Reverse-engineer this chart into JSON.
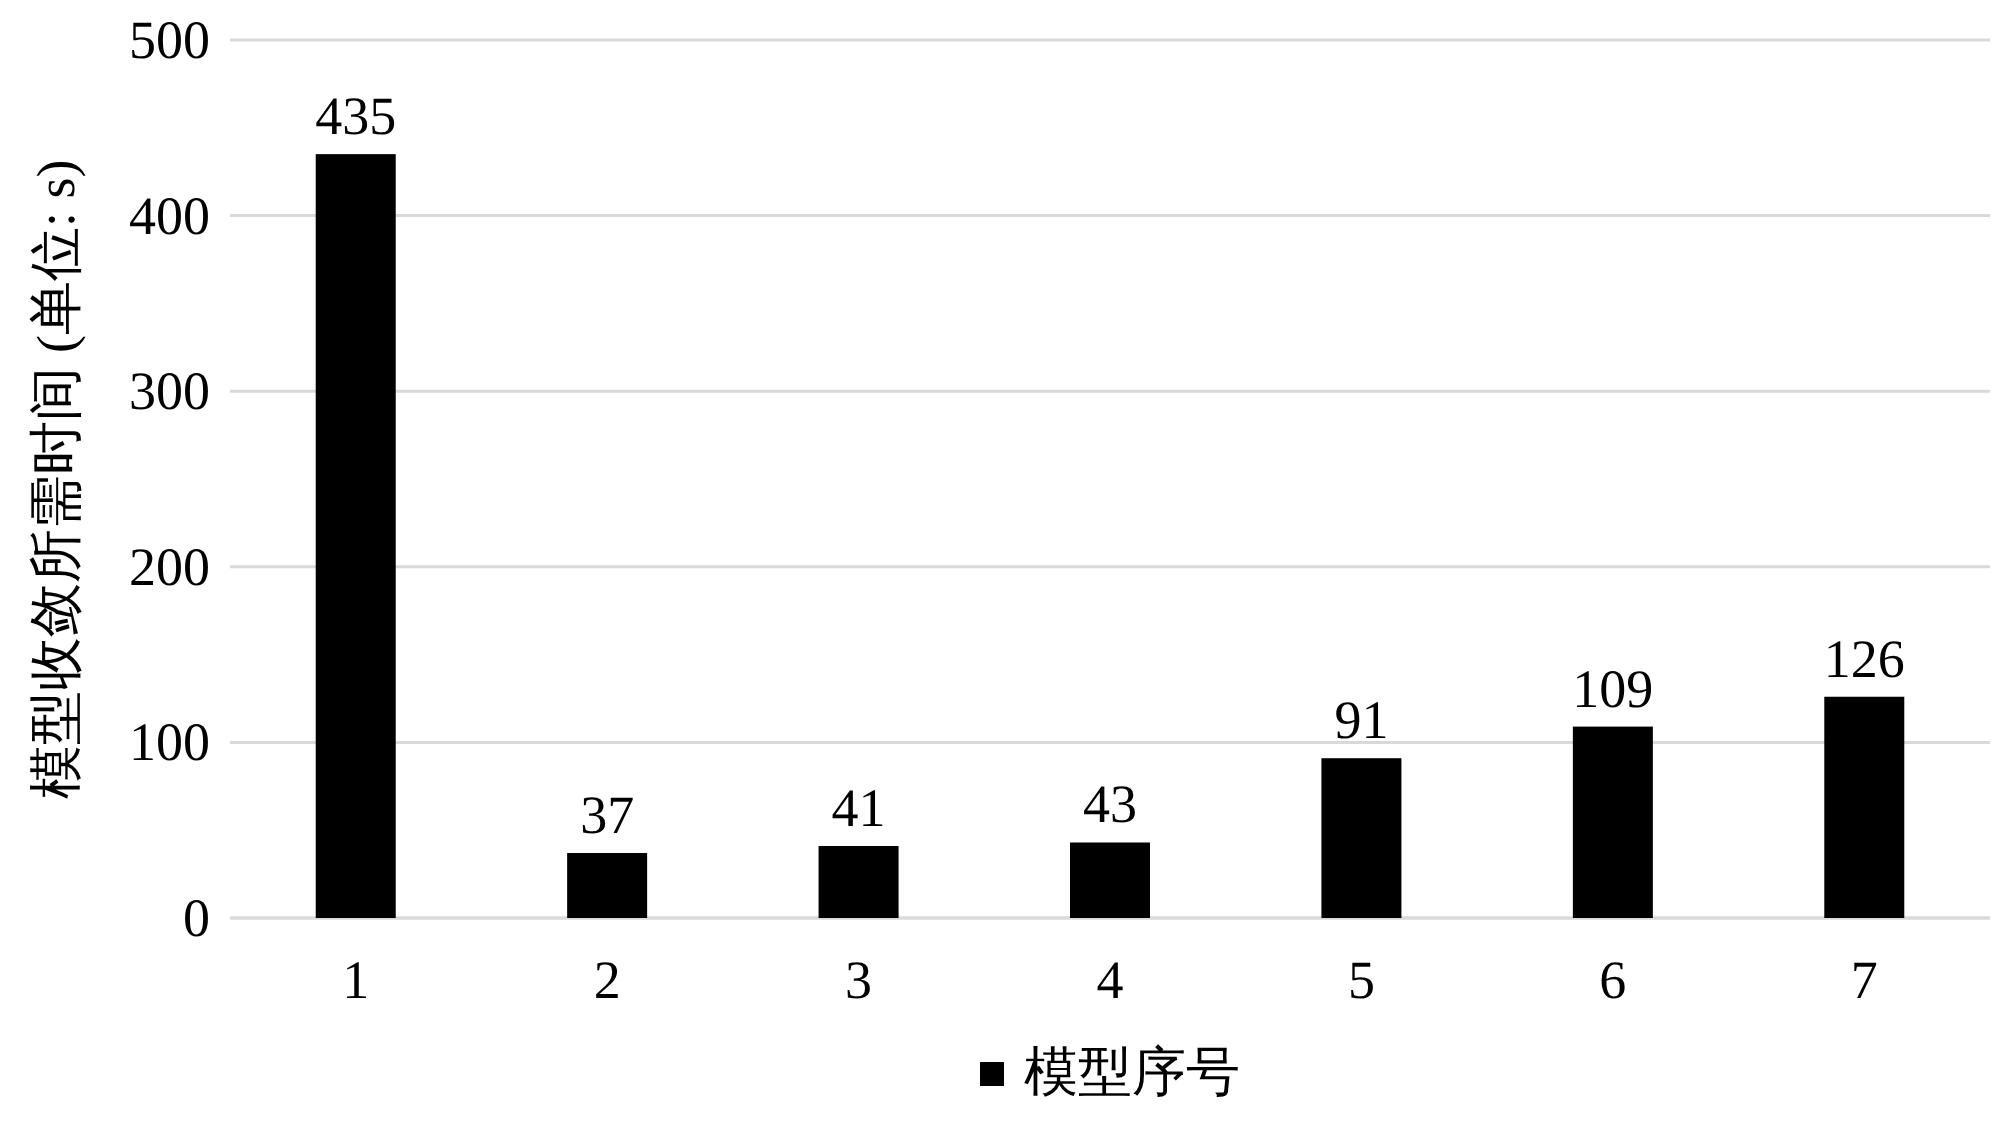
{
  "chart_data": {
    "type": "bar",
    "categories": [
      "1",
      "2",
      "3",
      "4",
      "5",
      "6",
      "7"
    ],
    "series": [
      {
        "name": "模型序号",
        "color": "#000000",
        "values": [
          435,
          37,
          41,
          43,
          91,
          109,
          126
        ]
      }
    ],
    "ylabel": "模型收敛所需时间 (单位: s)",
    "ylim": [
      0,
      500
    ],
    "yticks": [
      0,
      100,
      200,
      300,
      400,
      500
    ],
    "grid": "y",
    "legend": "bottom",
    "data_labels": true
  }
}
